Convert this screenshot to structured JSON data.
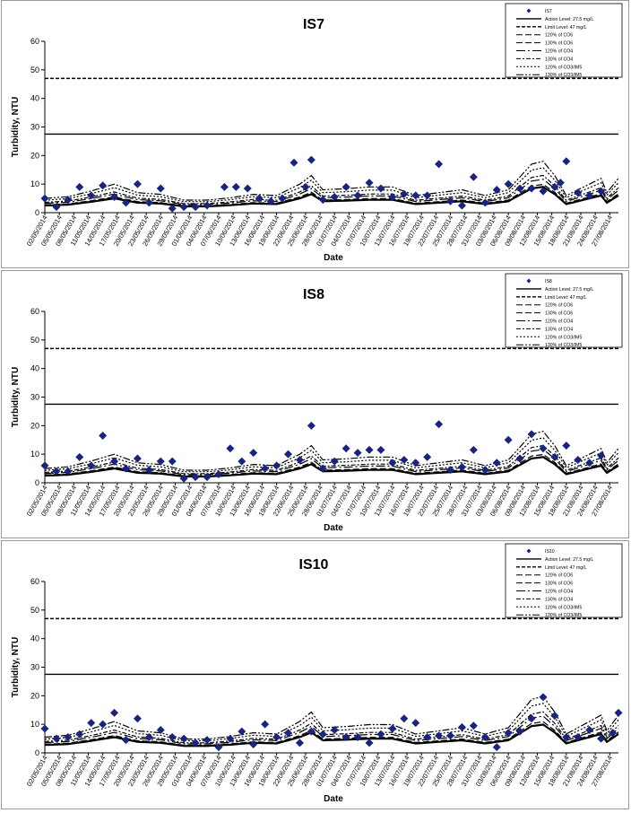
{
  "colors": {
    "marker": "#1a237e",
    "line": "#000000",
    "frame": "#9a9a9a"
  },
  "legend_entries": [
    "IS7",
    "Action Level: 27.5 mg/L",
    "Limit Level: 47 mg/L",
    "120% of CO6",
    "130% of CO6",
    "120% of CO4",
    "130% of CO4",
    "120% of CO3/IM5",
    "130% of CO3/IM5"
  ],
  "chart_data": [
    {
      "type": "scatter",
      "title": "IS7",
      "xlabel": "Date",
      "ylabel": "Turbidity, NTU",
      "ylim": [
        0,
        60
      ],
      "yticks": [
        "0",
        "10",
        "20",
        "30",
        "40",
        "50",
        "60"
      ],
      "xticks": [
        "02/05/2014",
        "05/05/2014",
        "08/05/2014",
        "11/05/2014",
        "14/05/2014",
        "17/05/2014",
        "20/05/2014",
        "23/05/2014",
        "26/05/2014",
        "29/05/2014",
        "01/06/2014",
        "04/06/2014",
        "07/06/2014",
        "10/06/2014",
        "13/06/2014",
        "16/06/2014",
        "19/06/2014",
        "22/06/2014",
        "25/06/2014",
        "28/06/2014",
        "01/07/2014",
        "04/07/2014",
        "07/07/2014",
        "10/07/2014",
        "13/07/2014",
        "16/07/2014",
        "19/07/2014",
        "22/07/2014",
        "25/07/2014",
        "28/07/2014",
        "31/07/2014",
        "03/08/2014",
        "06/08/2014",
        "09/08/2014",
        "12/08/2014",
        "15/08/2014",
        "18/08/2014",
        "21/08/2014",
        "24/08/2014",
        "27/08/2014"
      ],
      "legend": [
        "IS7",
        "Action Level: 27.5 mg/L",
        "Limit Level: 47 mg/L",
        "120% of CO6",
        "130% of CO6",
        "120% of CO4",
        "130% of CO4",
        "120% of CO3/IM5",
        "130% of CO3/IM5"
      ],
      "legend_position": "top-right",
      "action_level": 27.5,
      "limit_level": 47,
      "points": [
        [
          0,
          5
        ],
        [
          2,
          2
        ],
        [
          4,
          4.5
        ],
        [
          6,
          9
        ],
        [
          8,
          6
        ],
        [
          10,
          9.5
        ],
        [
          12,
          5.5
        ],
        [
          14,
          3.5
        ],
        [
          16,
          10
        ],
        [
          18,
          3.5
        ],
        [
          20,
          8.5
        ],
        [
          22,
          1.5
        ],
        [
          24,
          2
        ],
        [
          26,
          2
        ],
        [
          28,
          2.5
        ],
        [
          31,
          9
        ],
        [
          33,
          9
        ],
        [
          35,
          8.5
        ],
        [
          37,
          5
        ],
        [
          39,
          4
        ],
        [
          41,
          5
        ],
        [
          43,
          17.5
        ],
        [
          45,
          9
        ],
        [
          46,
          18.5
        ],
        [
          48,
          4.5
        ],
        [
          50,
          5.5
        ],
        [
          52,
          9
        ],
        [
          54,
          6
        ],
        [
          56,
          10.5
        ],
        [
          58,
          8.5
        ],
        [
          60,
          5.5
        ],
        [
          62,
          6.5
        ],
        [
          64,
          6
        ],
        [
          66,
          6
        ],
        [
          68,
          17
        ],
        [
          70,
          4
        ],
        [
          72,
          2.5
        ],
        [
          74,
          12.5
        ],
        [
          76,
          3.5
        ],
        [
          78,
          8
        ],
        [
          80,
          10
        ],
        [
          82,
          8.5
        ],
        [
          84,
          8.5
        ],
        [
          86,
          7.5
        ],
        [
          88,
          9
        ],
        [
          89,
          10.5
        ],
        [
          90,
          18
        ],
        [
          92,
          7
        ],
        [
          94,
          6
        ],
        [
          96,
          7.5
        ]
      ],
      "peak_scale": 1.0
    },
    {
      "type": "scatter",
      "title": "IS8",
      "xlabel": "Date",
      "ylabel": "Turbidity, NTU",
      "ylim": [
        0,
        60
      ],
      "yticks": [
        "0",
        "10",
        "20",
        "30",
        "40",
        "50",
        "60"
      ],
      "xticks": [
        "02/05/2014",
        "05/05/2014",
        "08/05/2014",
        "11/05/2014",
        "14/05/2014",
        "17/05/2014",
        "20/05/2014",
        "23/05/2014",
        "26/05/2014",
        "29/05/2014",
        "01/06/2014",
        "04/06/2014",
        "07/06/2014",
        "10/06/2014",
        "13/06/2014",
        "16/06/2014",
        "19/06/2014",
        "22/06/2014",
        "25/06/2014",
        "28/06/2014",
        "01/07/2014",
        "04/07/2014",
        "07/07/2014",
        "10/07/2014",
        "13/07/2014",
        "16/07/2014",
        "19/07/2014",
        "22/07/2014",
        "25/07/2014",
        "28/07/2014",
        "31/07/2014",
        "03/08/2014",
        "06/08/2014",
        "09/08/2014",
        "12/08/2014",
        "15/08/2014",
        "18/08/2014",
        "21/08/2014",
        "24/08/2014",
        "27/08/2014"
      ],
      "legend": [
        "IS8",
        "Action Level: 27.5 mg/L",
        "Limit Level: 47 mg/L",
        "120% of CO6",
        "130% of CO6",
        "120% of CO4",
        "130% of CO4",
        "120% of CO3/IM5",
        "130% of CO3/IM5"
      ],
      "legend_position": "top-right",
      "action_level": 27.5,
      "limit_level": 47,
      "points": [
        [
          0,
          6
        ],
        [
          2,
          4
        ],
        [
          4,
          4
        ],
        [
          6,
          9
        ],
        [
          8,
          6
        ],
        [
          10,
          16.5
        ],
        [
          12,
          7.5
        ],
        [
          14,
          5
        ],
        [
          16,
          8.5
        ],
        [
          18,
          4.5
        ],
        [
          20,
          7.5
        ],
        [
          22,
          7.5
        ],
        [
          24,
          1.5
        ],
        [
          26,
          2
        ],
        [
          28,
          2
        ],
        [
          30,
          3
        ],
        [
          32,
          12
        ],
        [
          34,
          7.5
        ],
        [
          36,
          10.5
        ],
        [
          38,
          5
        ],
        [
          40,
          6
        ],
        [
          42,
          10
        ],
        [
          44,
          8
        ],
        [
          46,
          20
        ],
        [
          48,
          5
        ],
        [
          50,
          7.5
        ],
        [
          52,
          12
        ],
        [
          54,
          10.5
        ],
        [
          56,
          11.5
        ],
        [
          58,
          11.5
        ],
        [
          60,
          7
        ],
        [
          62,
          8
        ],
        [
          64,
          7
        ],
        [
          66,
          9
        ],
        [
          68,
          20.5
        ],
        [
          70,
          4.5
        ],
        [
          72,
          5.5
        ],
        [
          74,
          11.5
        ],
        [
          76,
          4.5
        ],
        [
          78,
          7
        ],
        [
          80,
          15
        ],
        [
          82,
          8.5
        ],
        [
          84,
          17
        ],
        [
          86,
          12
        ],
        [
          88,
          9
        ],
        [
          90,
          13
        ],
        [
          92,
          8
        ],
        [
          94,
          7
        ],
        [
          96,
          9.5
        ]
      ],
      "peak_scale": 1.0
    },
    {
      "type": "scatter",
      "title": "IS10",
      "xlabel": "Date",
      "ylabel": "Turbidity, NTU",
      "ylim": [
        0,
        60
      ],
      "yticks": [
        "0",
        "10",
        "20",
        "30",
        "40",
        "50",
        "60"
      ],
      "xticks": [
        "02/05/2014",
        "05/05/2014",
        "08/05/2014",
        "11/05/2014",
        "14/05/2014",
        "17/05/2014",
        "20/05/2014",
        "23/05/2014",
        "26/05/2014",
        "29/05/2014",
        "01/06/2014",
        "04/06/2014",
        "07/06/2014",
        "10/06/2014",
        "13/06/2014",
        "16/06/2014",
        "19/06/2014",
        "22/06/2014",
        "25/06/2014",
        "28/06/2014",
        "01/07/2014",
        "04/07/2014",
        "07/07/2014",
        "10/07/2014",
        "13/07/2014",
        "16/07/2014",
        "19/07/2014",
        "22/07/2014",
        "25/07/2014",
        "28/07/2014",
        "31/07/2014",
        "03/08/2014",
        "06/08/2014",
        "09/08/2014",
        "12/08/2014",
        "15/08/2014",
        "18/08/2014",
        "21/08/2014",
        "24/08/2014",
        "27/08/2014"
      ],
      "legend": [
        "IS10",
        "Action Level: 27.5 mg/L",
        "Limit Level: 47 mg/L",
        "120% of CO6",
        "130% of CO6",
        "120% of CO4",
        "130% of CO4",
        "120% of CO3/IM5",
        "130% of CO3/IM5"
      ],
      "legend_position": "top-right",
      "action_level": 27.5,
      "limit_level": 47,
      "points": [
        [
          0,
          8.5
        ],
        [
          2,
          5
        ],
        [
          4,
          5.5
        ],
        [
          6,
          6.5
        ],
        [
          8,
          10.5
        ],
        [
          10,
          10
        ],
        [
          12,
          14
        ],
        [
          14,
          4.5
        ],
        [
          16,
          12
        ],
        [
          18,
          5.5
        ],
        [
          20,
          8
        ],
        [
          22,
          5.5
        ],
        [
          24,
          5
        ],
        [
          26,
          3.5
        ],
        [
          28,
          4.5
        ],
        [
          30,
          2
        ],
        [
          32,
          5
        ],
        [
          34,
          7.5
        ],
        [
          36,
          3
        ],
        [
          38,
          10
        ],
        [
          40,
          5.5
        ],
        [
          42,
          7
        ],
        [
          44,
          3.5
        ],
        [
          46,
          7.5
        ],
        [
          48,
          6.5
        ],
        [
          50,
          8
        ],
        [
          52,
          5.5
        ],
        [
          54,
          5.5
        ],
        [
          56,
          3.5
        ],
        [
          58,
          6.5
        ],
        [
          60,
          8.5
        ],
        [
          62,
          12
        ],
        [
          64,
          10.5
        ],
        [
          66,
          5.5
        ],
        [
          68,
          6
        ],
        [
          70,
          6
        ],
        [
          72,
          9
        ],
        [
          74,
          9.5
        ],
        [
          76,
          5.5
        ],
        [
          78,
          2
        ],
        [
          80,
          7
        ],
        [
          82,
          7.5
        ],
        [
          84,
          12
        ],
        [
          86,
          19.5
        ],
        [
          88,
          13
        ],
        [
          90,
          5.5
        ],
        [
          92,
          5.5
        ],
        [
          94,
          8
        ],
        [
          96,
          5
        ],
        [
          98,
          7
        ],
        [
          99,
          14
        ]
      ],
      "peak_scale": 1.1
    }
  ]
}
